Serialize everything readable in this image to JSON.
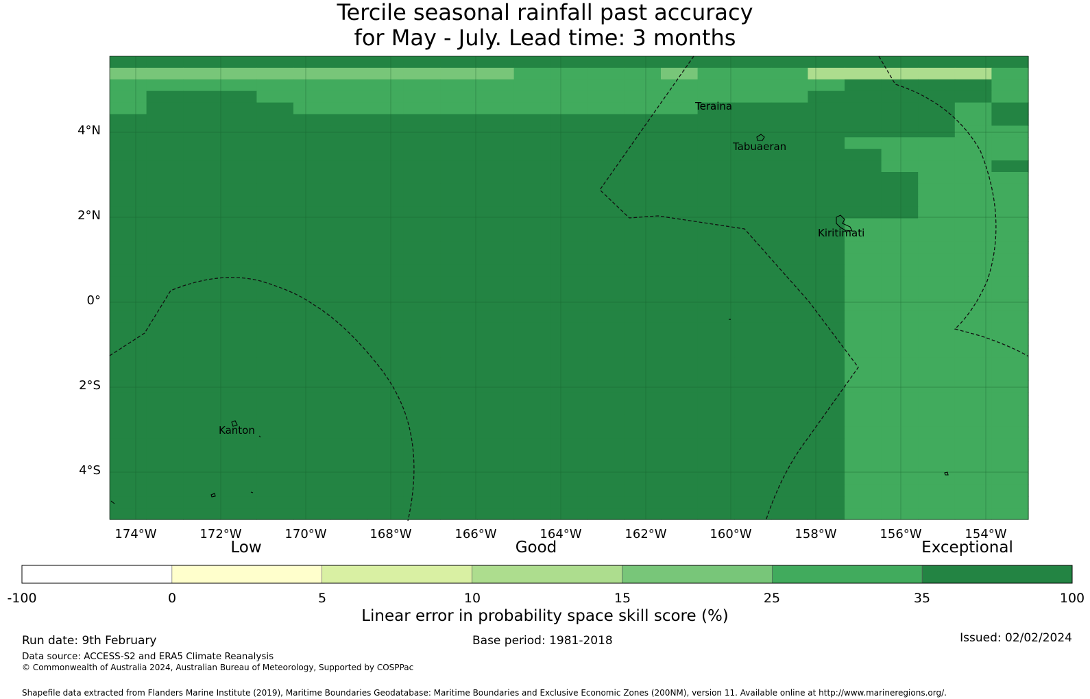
{
  "map": {
    "title_line1": "Tercile seasonal rainfall past accuracy",
    "title_line2": "for May - July. Lead time: 3 months",
    "lon_labels": [
      "174°W",
      "172°W",
      "170°W",
      "168°W",
      "166°W",
      "164°W",
      "162°W",
      "160°W",
      "158°W",
      "156°W",
      "154°W"
    ],
    "lat_labels": [
      "4°N",
      "2°N",
      "0°",
      "2°S",
      "4°S"
    ],
    "place_labels": {
      "teraina": "Teraina",
      "tabuaeran": "Tabuaeran",
      "kiritimati": "Kiritimati",
      "kanton": "Kanton"
    },
    "palette": [
      "#ffffff",
      "#ffffcc",
      "#d9f0a3",
      "#addd8e",
      "#78c679",
      "#41ab5d",
      "#238443"
    ],
    "skill_grid_rows": [
      "6666666666666666666666666",
      "4444444444455554555333335",
      "5555555555555555555566665",
      "5666555555555555555666665",
      "5666655555555555666666656",
      "6666666666666666666666656",
      "6666666666666666666666655",
      "6666666666666666666655555",
      "6666666666666666666665555",
      "6666666666666666666665556",
      "6666666666666666666666555",
      "6666666666666666666666555",
      "6666666666666666666666555",
      "6666666666666666666666555",
      "6666666666666666666655555",
      "6666666666666666666655555",
      "6666666666666666666655555",
      "6666666666666666666655555",
      "6666666666666666666655555",
      "6666666666666666666655555",
      "6666666666666666666655555",
      "6666666666666666666655555",
      "6666666666666666666655555",
      "6666666666666666666655555",
      "6666666666666666666655555",
      "6666666666666666666655555",
      "6666666666666666666655555",
      "6666666666666666666655555",
      "6666666666666666666655555",
      "6666666666666666666655555",
      "6666666666666666666655555",
      "6666666666666666666655555",
      "6666666666666666666655555",
      "6666666666666666666655555",
      "6666666666666666666655555",
      "6666666666666666666655555",
      "6666666666666666666655555",
      "6666666666666666666655555",
      "6666666666666666666655555",
      "6666666666666666666655555"
    ]
  },
  "colorbar": {
    "category_labels": {
      "low": "Low",
      "good": "Good",
      "exceptional": "Exceptional"
    },
    "ticks": [
      "-100",
      "0",
      "5",
      "10",
      "15",
      "25",
      "35",
      "100"
    ],
    "title": "Linear error in probability space skill score (%)"
  },
  "footer": {
    "run_date": "Run date: 9th February",
    "base_period": "Base period: 1981-2018",
    "issued": "Issued: 02/02/2024",
    "data_source": "Data source: ACCESS-S2 and ERA5 Climate Reanalysis",
    "copyright": "© Commonwealth of Australia 2024, Australian Bureau of Meteorology, Supported by COSPPac",
    "shapefile": "Shapefile data extracted from Flanders Marine Institute (2019), Maritime Boundaries Geodatabase: Maritime Boundaries and Exclusive Economic Zones (200NM), version 11. Available online at http://www.marineregions.org/."
  }
}
